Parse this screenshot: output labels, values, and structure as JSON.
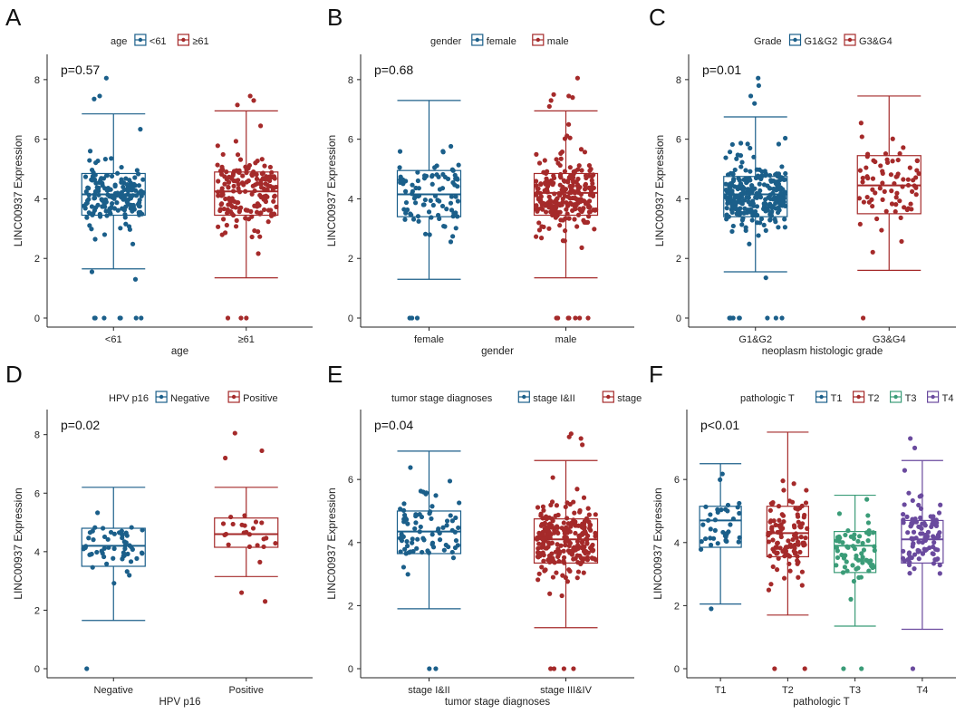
{
  "colors": {
    "blue": "#1b5f8a",
    "red": "#a52a2a",
    "green": "#3b9c78",
    "purple": "#6a4a9e",
    "axis": "#222222",
    "text": "#222222"
  },
  "ylabel": "LINC00937 Expression",
  "chart_data": [
    {
      "type": "boxplot",
      "letter": "A",
      "legend_title": "age",
      "legend_labels": [
        "<61",
        "≥61"
      ],
      "pvalue": "p=0.57",
      "xlabel": "age",
      "categories": [
        "<61",
        "≥61"
      ],
      "colors": [
        "blue",
        "red"
      ],
      "ylim": [
        0,
        8.3
      ],
      "yticks": [
        0,
        2,
        4,
        6,
        8
      ],
      "boxes": [
        {
          "min": 1.65,
          "q1": 3.45,
          "median": 4.15,
          "q3": 4.85,
          "max": 6.85,
          "n": 170,
          "zeros": 7,
          "outliers": [
            8.05,
            7.45,
            7.35,
            1.3,
            1.55
          ]
        },
        {
          "min": 1.35,
          "q1": 3.45,
          "median": 4.25,
          "q3": 4.9,
          "max": 6.95,
          "n": 170,
          "zeros": 3,
          "outliers": [
            7.45,
            7.3,
            7.15
          ]
        }
      ]
    },
    {
      "type": "boxplot",
      "letter": "B",
      "legend_title": "gender",
      "legend_labels": [
        "female",
        "male"
      ],
      "pvalue": "p=0.68",
      "xlabel": "gender",
      "categories": [
        "female",
        "male"
      ],
      "colors": [
        "blue",
        "red"
      ],
      "ylim": [
        0,
        8.3
      ],
      "yticks": [
        0,
        2,
        4,
        6,
        8
      ],
      "boxes": [
        {
          "min": 1.3,
          "q1": 3.4,
          "median": 4.15,
          "q3": 4.95,
          "max": 7.3,
          "n": 90,
          "zeros": 3,
          "outliers": []
        },
        {
          "min": 1.35,
          "q1": 3.45,
          "median": 4.2,
          "q3": 4.85,
          "max": 6.95,
          "n": 240,
          "zeros": 7,
          "outliers": [
            8.05,
            7.5,
            7.45,
            7.4,
            7.3,
            7.1
          ]
        }
      ]
    },
    {
      "type": "boxplot",
      "letter": "C",
      "legend_title": "Grade",
      "legend_labels": [
        "G1&G2",
        "G3&G4"
      ],
      "pvalue": "p=0.01",
      "xlabel": "neoplasm histologic grade",
      "categories": [
        "G1&G2",
        "G3&G4"
      ],
      "colors": [
        "blue",
        "red"
      ],
      "ylim": [
        0,
        8.3
      ],
      "yticks": [
        0,
        2,
        4,
        6,
        8
      ],
      "boxes": [
        {
          "min": 1.55,
          "q1": 3.4,
          "median": 4.15,
          "q3": 4.75,
          "max": 6.75,
          "n": 260,
          "zeros": 9,
          "outliers": [
            8.05,
            7.8,
            7.45,
            7.2,
            1.35
          ]
        },
        {
          "min": 1.6,
          "q1": 3.5,
          "median": 4.45,
          "q3": 5.45,
          "max": 7.45,
          "n": 75,
          "zeros": 1,
          "outliers": []
        }
      ]
    },
    {
      "type": "boxplot",
      "letter": "D",
      "legend_title": "HPV p16",
      "legend_labels": [
        "Negative",
        "Positive"
      ],
      "pvalue": "p=0.02",
      "xlabel": "HPV p16",
      "categories": [
        "Negative",
        "Positive"
      ],
      "colors": [
        "blue",
        "red"
      ],
      "ylim": [
        0,
        8.3
      ],
      "yticks": [
        0,
        2,
        4,
        6,
        8
      ],
      "boxes": [
        {
          "min": 1.65,
          "q1": 3.5,
          "median": 4.2,
          "q3": 4.8,
          "max": 6.2,
          "n": 55,
          "zeros": 1,
          "outliers": []
        },
        {
          "min": 3.15,
          "q1": 4.15,
          "median": 4.6,
          "q3": 5.15,
          "max": 6.2,
          "n": 22,
          "zeros": 0,
          "outliers": [
            8.05,
            7.45,
            7.2,
            2.6,
            2.3
          ]
        }
      ]
    },
    {
      "type": "boxplot",
      "letter": "E",
      "legend_title": "tumor stage diagnoses",
      "legend_labels": [
        "stage I&II",
        "stage III&IV"
      ],
      "pvalue": "p=0.04",
      "xlabel": "tumor stage diagnoses",
      "categories": [
        "stage I&II",
        "stage III&IV"
      ],
      "colors": [
        "blue",
        "red"
      ],
      "ylim": [
        0,
        7.7
      ],
      "yticks": [
        0,
        2,
        4,
        6
      ],
      "boxes": [
        {
          "min": 1.9,
          "q1": 3.65,
          "median": 4.35,
          "q3": 5.0,
          "max": 6.9,
          "n": 80,
          "zeros": 2,
          "outliers": []
        },
        {
          "min": 1.3,
          "q1": 3.35,
          "median": 4.1,
          "q3": 4.75,
          "max": 6.6,
          "n": 240,
          "zeros": 4,
          "outliers": [
            7.45,
            7.35,
            7.3,
            7.1
          ]
        }
      ]
    },
    {
      "type": "boxplot",
      "letter": "F",
      "legend_title": "pathologic T",
      "legend_labels": [
        "T1",
        "T2",
        "T3",
        "T4"
      ],
      "pvalue": "p<0.01",
      "xlabel": "pathologic T",
      "categories": [
        "T1",
        "T2",
        "T3",
        "T4"
      ],
      "colors": [
        "blue",
        "red",
        "green",
        "purple"
      ],
      "ylim": [
        0,
        7.7
      ],
      "yticks": [
        0,
        2,
        4,
        6
      ],
      "boxes": [
        {
          "min": 2.05,
          "q1": 3.85,
          "median": 4.7,
          "q3": 5.15,
          "max": 6.5,
          "n": 38,
          "zeros": 0,
          "outliers": [
            1.9
          ]
        },
        {
          "min": 1.7,
          "q1": 3.55,
          "median": 4.3,
          "q3": 5.15,
          "max": 7.5,
          "n": 110,
          "zeros": 2,
          "outliers": []
        },
        {
          "min": 1.35,
          "q1": 3.05,
          "median": 3.9,
          "q3": 4.35,
          "max": 5.5,
          "n": 65,
          "zeros": 2,
          "outliers": []
        },
        {
          "min": 1.25,
          "q1": 3.35,
          "median": 4.1,
          "q3": 4.7,
          "max": 6.6,
          "n": 100,
          "zeros": 1,
          "outliers": [
            7.3,
            7.0
          ]
        }
      ]
    }
  ]
}
